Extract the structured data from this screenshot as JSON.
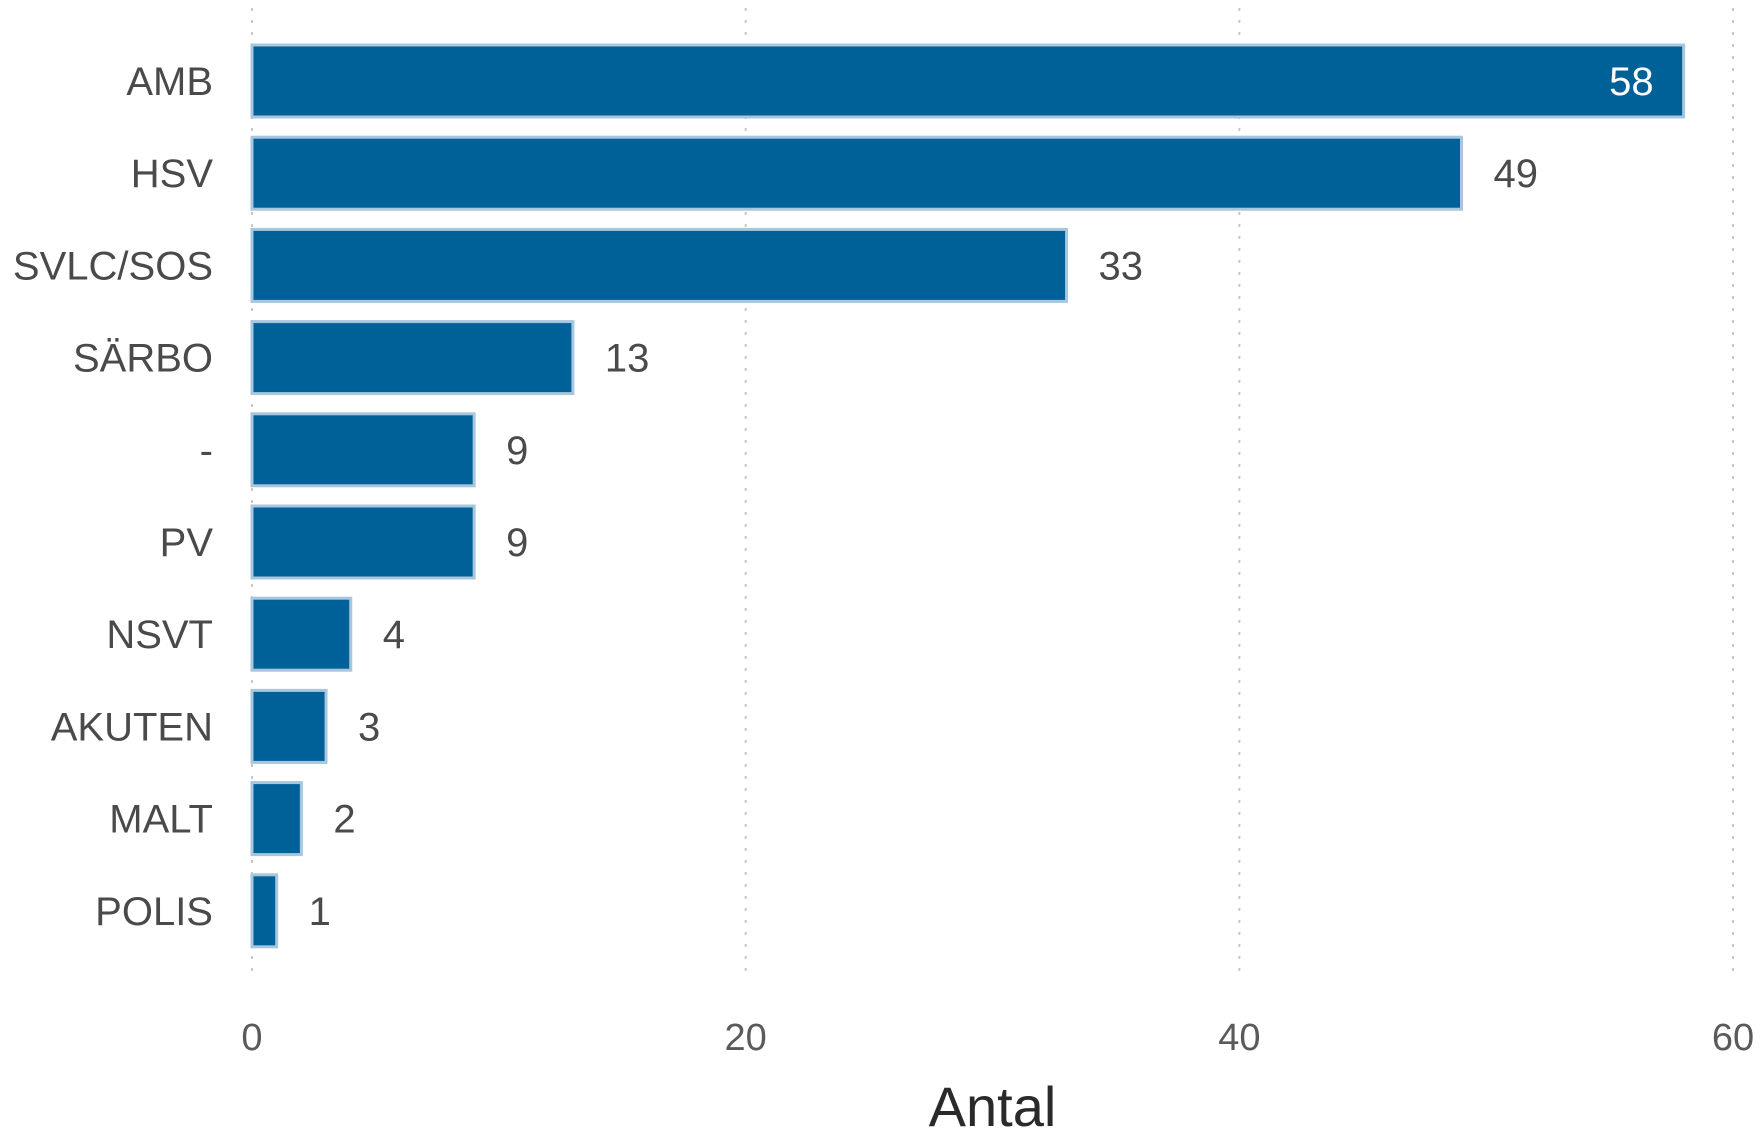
{
  "chart_data": {
    "type": "bar",
    "orientation": "horizontal",
    "categories": [
      "AMB",
      "HSV",
      "SVLC/SOS",
      "SÄRBO",
      "-",
      "PV",
      "NSVT",
      "AKUTEN",
      "MALT",
      "POLIS"
    ],
    "values": [
      58,
      49,
      33,
      13,
      9,
      9,
      4,
      3,
      2,
      1
    ],
    "value_labels": [
      "58",
      "49",
      "33",
      "13",
      "9",
      "9",
      "4",
      "3",
      "2",
      "1"
    ],
    "xlabel": "Antal",
    "ylabel": "",
    "title": "",
    "xlim": [
      0,
      60
    ],
    "xticks": [
      0,
      20,
      40,
      60
    ],
    "xtick_labels": [
      "0",
      "20",
      "40",
      "60"
    ],
    "grid": "vertical-dotted",
    "legend": "none",
    "colors": {
      "bar": "#006098",
      "bar_outline": "#a8c6dc",
      "grid": "#c8c8c8",
      "label": "#4a4a4a",
      "inside_label": "#ffffff"
    }
  }
}
